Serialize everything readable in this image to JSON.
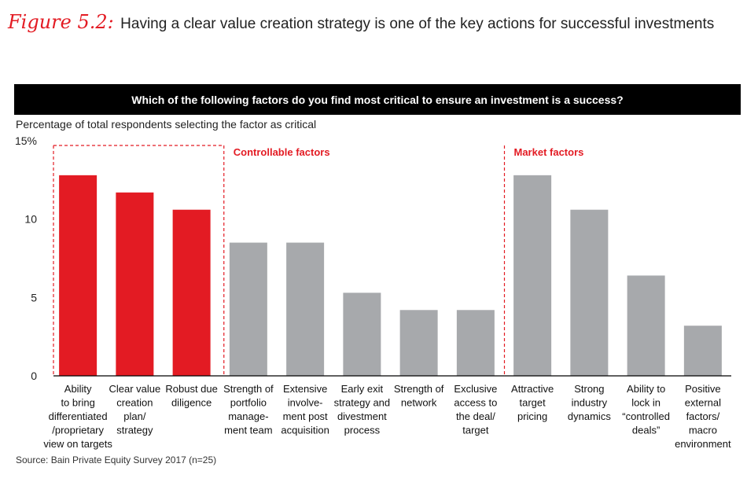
{
  "figure": {
    "label": "Figure 5.2:",
    "title": "Having a clear value creation strategy is one of the key actions for successful investments"
  },
  "banner": "Which of the following factors do you find most critical to ensure an investment is a success?",
  "subtitle": "Percentage of total respondents selecting the factor as critical",
  "source": "Source: Bain Private Equity Survey 2017 (n=25)",
  "colors": {
    "highlight": "#e31b23",
    "default": "#a7a9ac",
    "group_line": "#e31b23",
    "group_label": "#e31b23"
  },
  "chart_data": {
    "type": "bar",
    "categories": [
      [
        "Ability",
        "to bring",
        "differentiated",
        "/proprietary",
        "view on targets"
      ],
      [
        "Clear value",
        "creation",
        "plan/",
        "strategy"
      ],
      [
        "Robust due",
        "diligence"
      ],
      [
        "Strength of",
        "portfolio",
        "manage-",
        "ment team"
      ],
      [
        "Extensive",
        "involve-",
        "ment post",
        "acquisition"
      ],
      [
        "Early exit",
        "strategy and",
        "divestment",
        "process"
      ],
      [
        "Strength of",
        "network"
      ],
      [
        "Exclusive",
        "access to",
        "the deal/",
        "target"
      ],
      [
        "Attractive",
        "target",
        "pricing"
      ],
      [
        "Strong",
        "industry",
        "dynamics"
      ],
      [
        "Ability to",
        "lock in",
        "“controlled",
        "deals”"
      ],
      [
        "Positive",
        "external",
        "factors/",
        "macro",
        "environment"
      ]
    ],
    "values": [
      12.8,
      11.7,
      10.6,
      8.5,
      8.5,
      5.3,
      4.2,
      4.2,
      12.8,
      10.6,
      6.4,
      3.2
    ],
    "highlighted": [
      true,
      true,
      true,
      false,
      false,
      false,
      false,
      false,
      false,
      false,
      false,
      false
    ],
    "ylim": [
      0,
      15
    ],
    "yticks": [
      0,
      5,
      10,
      15
    ],
    "ytick_labels": [
      "0",
      "5",
      "10",
      "15%"
    ],
    "groups": [
      {
        "label": "Controllable factors",
        "start_index": 0
      },
      {
        "label": "Market factors",
        "start_index": 8
      }
    ]
  }
}
